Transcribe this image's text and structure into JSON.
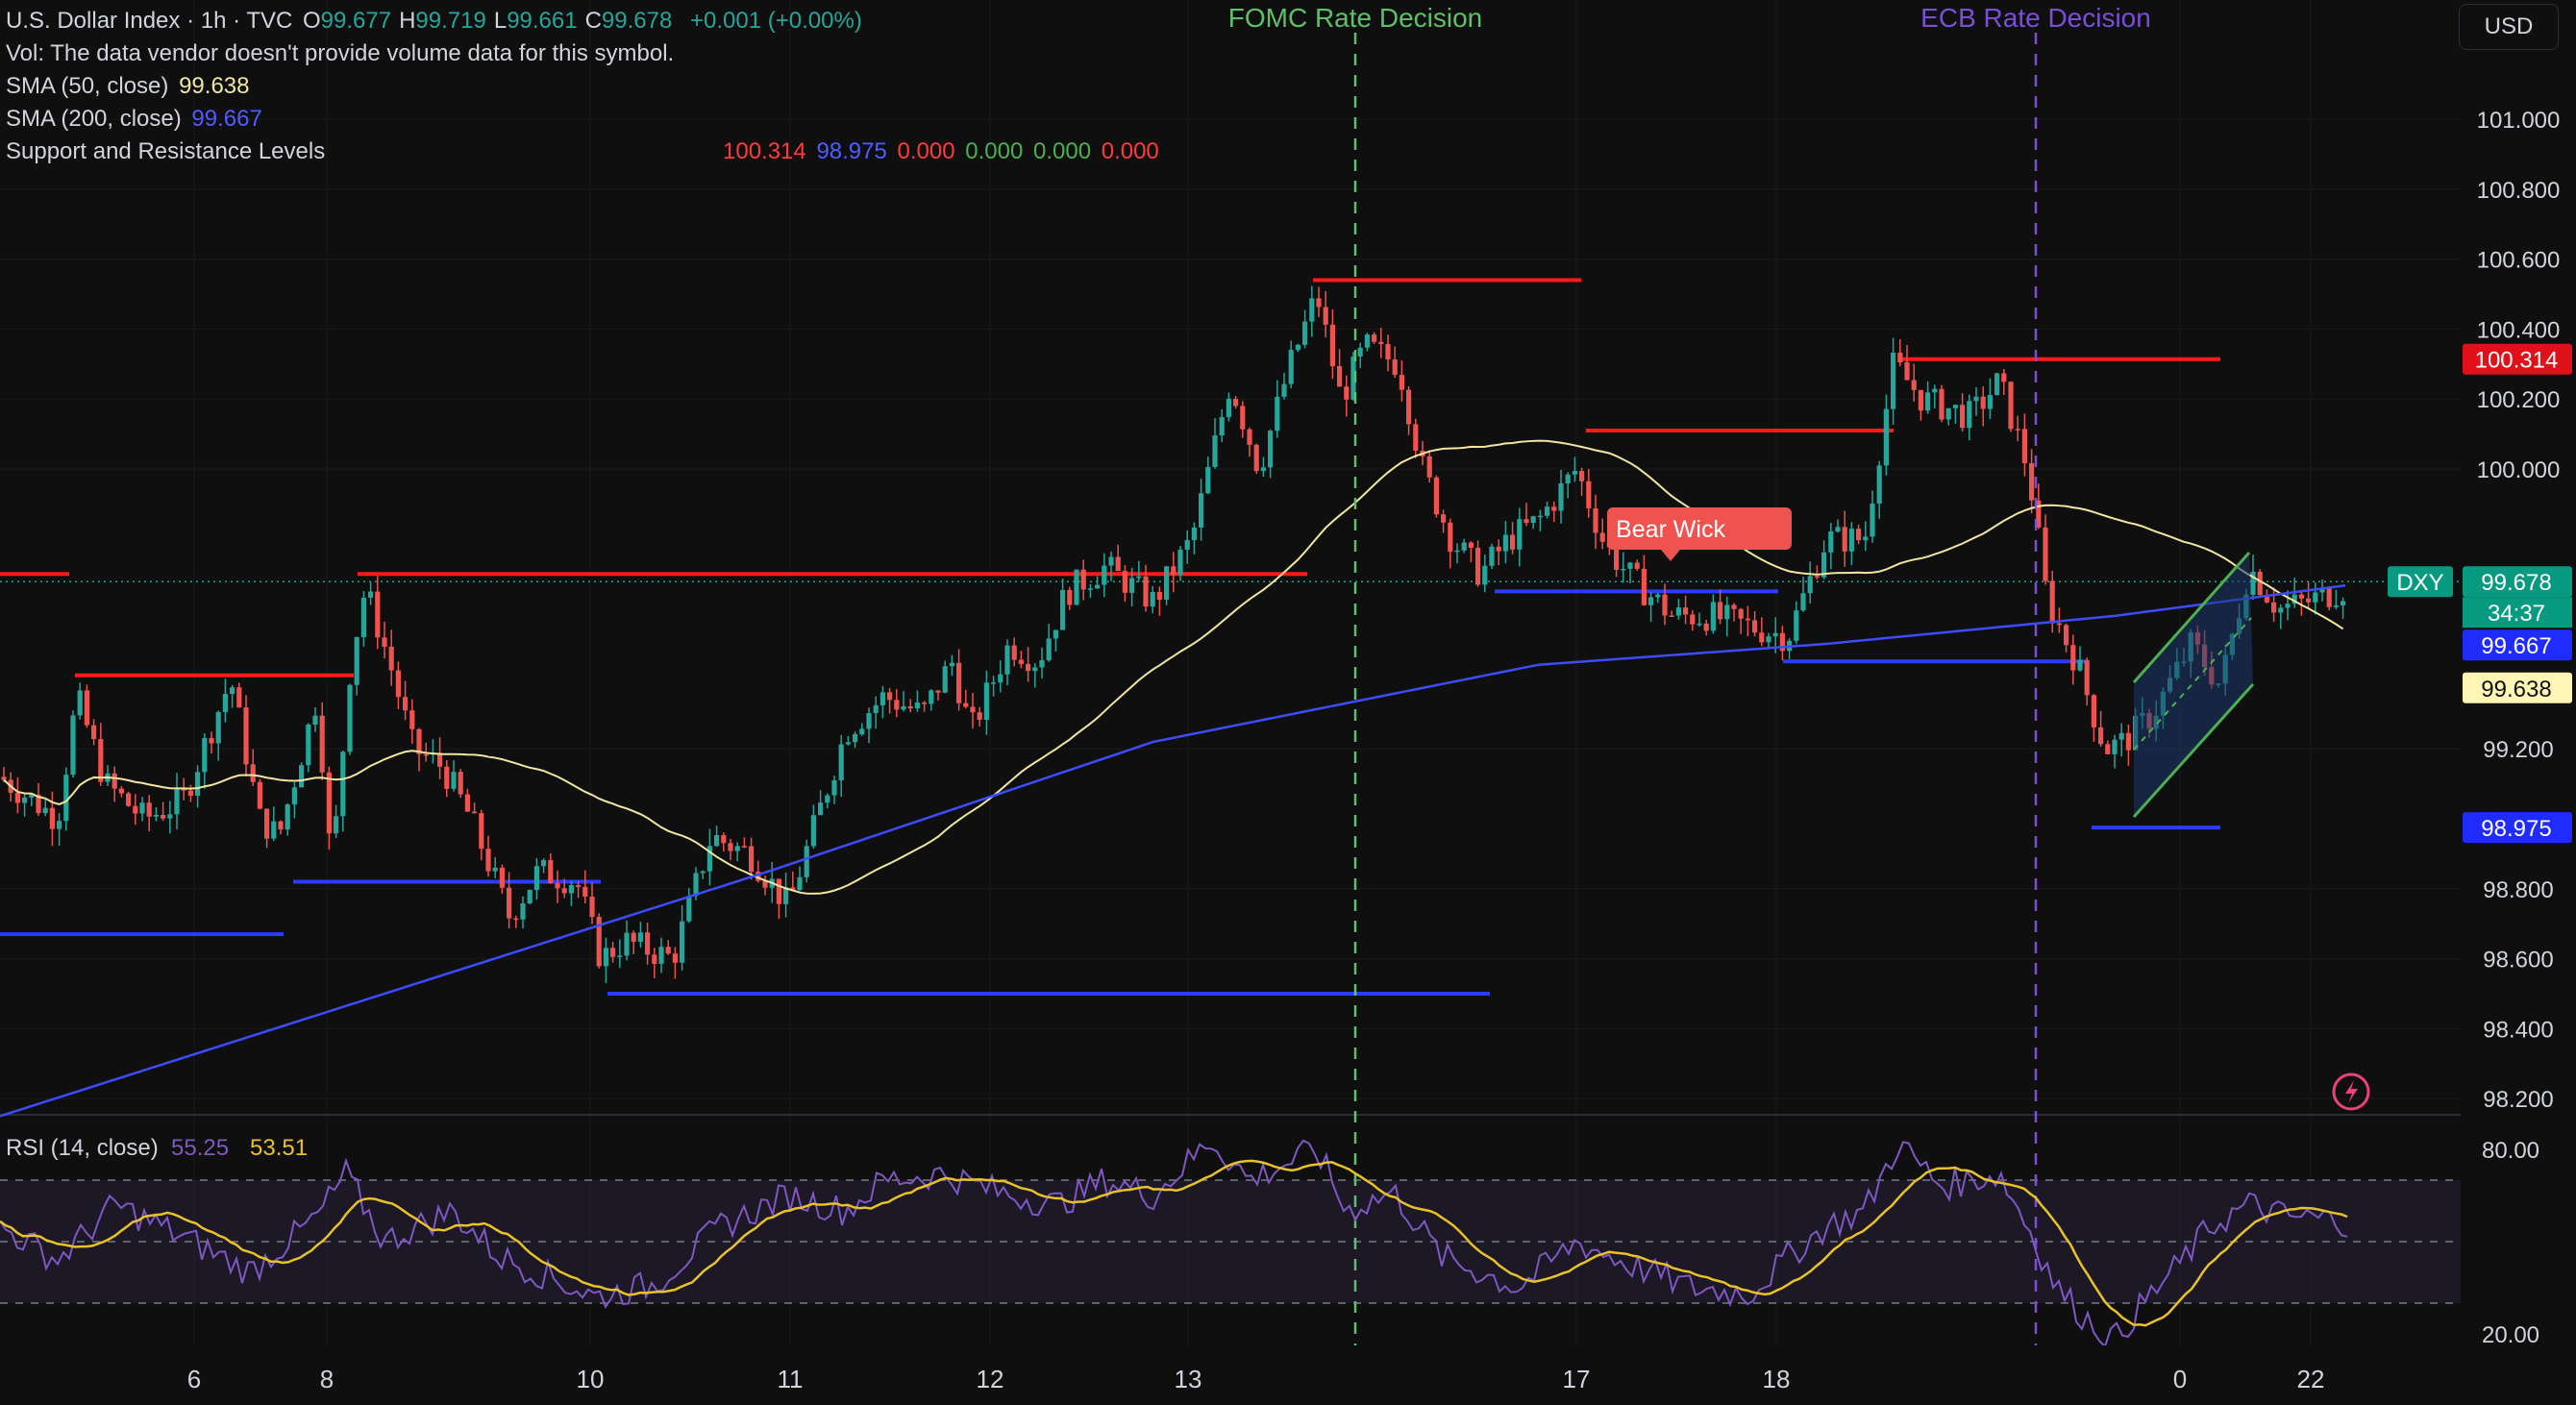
{
  "header": {
    "symbol": "U.S. Dollar Index · 1h · TVC",
    "ohlc": [
      {
        "key": "O",
        "value": "99.677"
      },
      {
        "key": "H",
        "value": "99.719"
      },
      {
        "key": "L",
        "value": "99.661"
      },
      {
        "key": "C",
        "value": "99.678"
      }
    ],
    "change": "+0.001 (+0.00%)",
    "vol_note": "Vol: The data vendor doesn't provide volume data for this symbol.",
    "sma50_label": "SMA (50, close)",
    "sma50_value": "99.638",
    "sma200_label": "SMA (200, close)",
    "sma200_value": "99.667",
    "snr_label": "Support and Resistance Levels",
    "snr_values": [
      "100.314",
      "98.975",
      "0.000",
      "0.000",
      "0.000",
      "0.000"
    ]
  },
  "currency_button": "USD",
  "colors": {
    "background": "#0f0f0f",
    "up": "#26a69a",
    "down": "#ef5350",
    "sma50": "#f0e6a0",
    "sma200": "#3d4cff",
    "resistance": "#ff1a1a",
    "support": "#2a3cff",
    "fomc": "#5fbf6a",
    "ecb": "#7a4fd6",
    "rsi": "#7e57c2",
    "rsi_ma": "#e8c227"
  },
  "chart_data": {
    "type": "candlestick",
    "symbol": "DXY",
    "timeframe": "1h",
    "x_ticks": [
      "6",
      "8",
      "10",
      "11",
      "12",
      "13",
      "17",
      "18",
      "0",
      "22"
    ],
    "y_ticks": [
      "98.200",
      "98.400",
      "98.600",
      "98.800",
      "99.200",
      "100.000",
      "100.200",
      "100.400",
      "100.600",
      "100.800",
      "101.000"
    ],
    "ylim": [
      98.17,
      101.05
    ],
    "current_price": "99.678",
    "countdown": "34:37",
    "price_labels": [
      {
        "name": "resistance",
        "value": "100.314"
      },
      {
        "name": "dxy",
        "value": "99.678"
      },
      {
        "name": "sma200",
        "value": "99.667"
      },
      {
        "name": "sma50",
        "value": "99.638"
      },
      {
        "name": "support",
        "value": "98.975"
      }
    ],
    "events": [
      {
        "label": "FOMC Rate Decision",
        "time": "Sun 15 Mar '26  21:00"
      },
      {
        "label": "ECB Rate Decision",
        "time": "Thu 19 Mar '26  07:00"
      }
    ],
    "annotation": "Bear Wick",
    "support_levels": [
      98.67,
      98.82,
      98.5,
      99.65,
      99.45,
      98.975
    ],
    "resistance_levels": [
      99.7,
      99.41,
      99.7,
      100.54,
      100.11,
      100.314
    ],
    "rsi": {
      "label": "RSI (14, close)",
      "value": "55.25",
      "ma_value": "53.51",
      "y_ticks": [
        "20.00",
        "80.00"
      ],
      "ylim": [
        20,
        80
      ],
      "levels": [
        70,
        50,
        30
      ]
    }
  }
}
